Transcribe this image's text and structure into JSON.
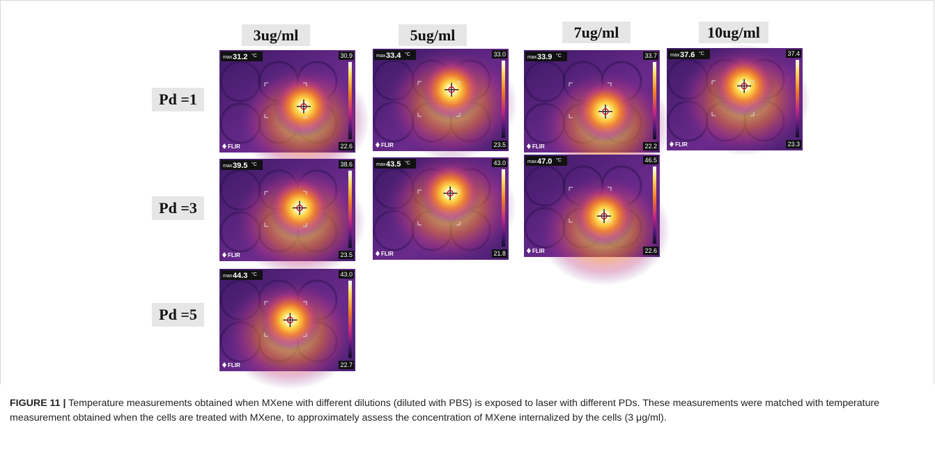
{
  "figure": {
    "columns": [
      "3ug/ml",
      "5ug/ml",
      "7ug/ml",
      "10ug/ml"
    ],
    "camera": {
      "max_label": "max",
      "unit": "°C",
      "brand": "FLIR"
    },
    "rows": [
      {
        "label": "Pd =1",
        "images": [
          {
            "max": "31.2",
            "scale_top": "30.9",
            "scale_bottom": "22.6"
          },
          {
            "max": "33.4",
            "scale_top": "33.0",
            "scale_bottom": "23.5"
          },
          {
            "max": "33.9",
            "scale_top": "33.7",
            "scale_bottom": "22.2"
          },
          {
            "max": "37.6",
            "scale_top": "37.4",
            "scale_bottom": "23.3"
          }
        ]
      },
      {
        "label": "Pd =3",
        "images": [
          {
            "max": "39.5",
            "scale_top": "38.6",
            "scale_bottom": "23.5"
          },
          {
            "max": "43.5",
            "scale_top": "43.0",
            "scale_bottom": "21.8"
          },
          {
            "max": "47.0",
            "scale_top": "46.5",
            "scale_bottom": "22.6"
          }
        ]
      },
      {
        "label": "Pd =5",
        "images": [
          {
            "max": "44.3",
            "scale_top": "43.0",
            "scale_bottom": "22.7"
          }
        ]
      }
    ]
  },
  "caption": {
    "label": "FIGURE 11 |",
    "text": "Temperature measurements obtained when MXene with different dilutions (diluted with PBS) is exposed to laser with different PDs. These measurements were matched with temperature measurement obtained when the cells are treated with MXene, to approximately assess the concentration of MXene internalized by the cells (3 μg/ml)."
  }
}
